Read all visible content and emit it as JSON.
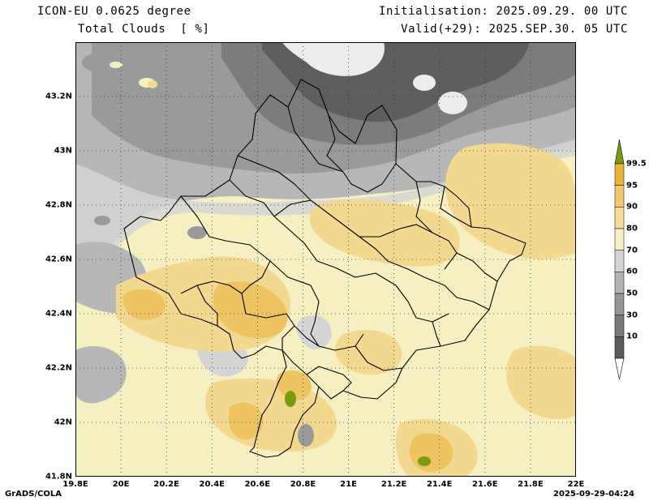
{
  "header": {
    "model": "ICON-EU 0.0625 degree",
    "variable": "Total Clouds  [ %]",
    "initialisation": "Initialisation: 2025.09.29. 00 UTC",
    "valid": "Valid(+29): 2025.SEP.30. 05 UTC"
  },
  "axes": {
    "x_ticks": [
      "19.8E",
      "20E",
      "20.2E",
      "20.4E",
      "20.6E",
      "20.8E",
      "21E",
      "21.2E",
      "21.4E",
      "21.6E",
      "21.8E",
      "22E"
    ],
    "y_ticks": [
      "43.2N",
      "43N",
      "42.8N",
      "42.6N",
      "42.4N",
      "42.2N",
      "42N",
      "41.8N"
    ],
    "lon_range": [
      19.8,
      22.0
    ],
    "lat_range": [
      41.8,
      43.4
    ]
  },
  "legend": {
    "labels": [
      "99.5",
      "95",
      "90",
      "80",
      "70",
      "60",
      "50",
      "30",
      "10"
    ],
    "colors": [
      "#7a9a10",
      "#e8b43a",
      "#f0c870",
      "#f5dc98",
      "#f7f0c4",
      "#d4d4d4",
      "#b4b4b4",
      "#969696",
      "#787878",
      "#5a5a5a",
      "#ffffff"
    ]
  },
  "colors": {
    "level_low": "#5e5e5e",
    "level_30": "#7c7c7c",
    "level_50": "#9a9a9a",
    "level_60": "#b7b7b7",
    "level_70": "#d5d5d5",
    "level_80": "#f6efc2",
    "level_90": "#f3d890",
    "level_95": "#eec462",
    "level_99": "#e5b238",
    "level_full": "#7a9a10",
    "clear": "#ececec",
    "border": "#000000",
    "grid": "#333333"
  },
  "footer": {
    "credit": "GrADS/COLA",
    "timestamp": "2025-09-29-04:24"
  }
}
